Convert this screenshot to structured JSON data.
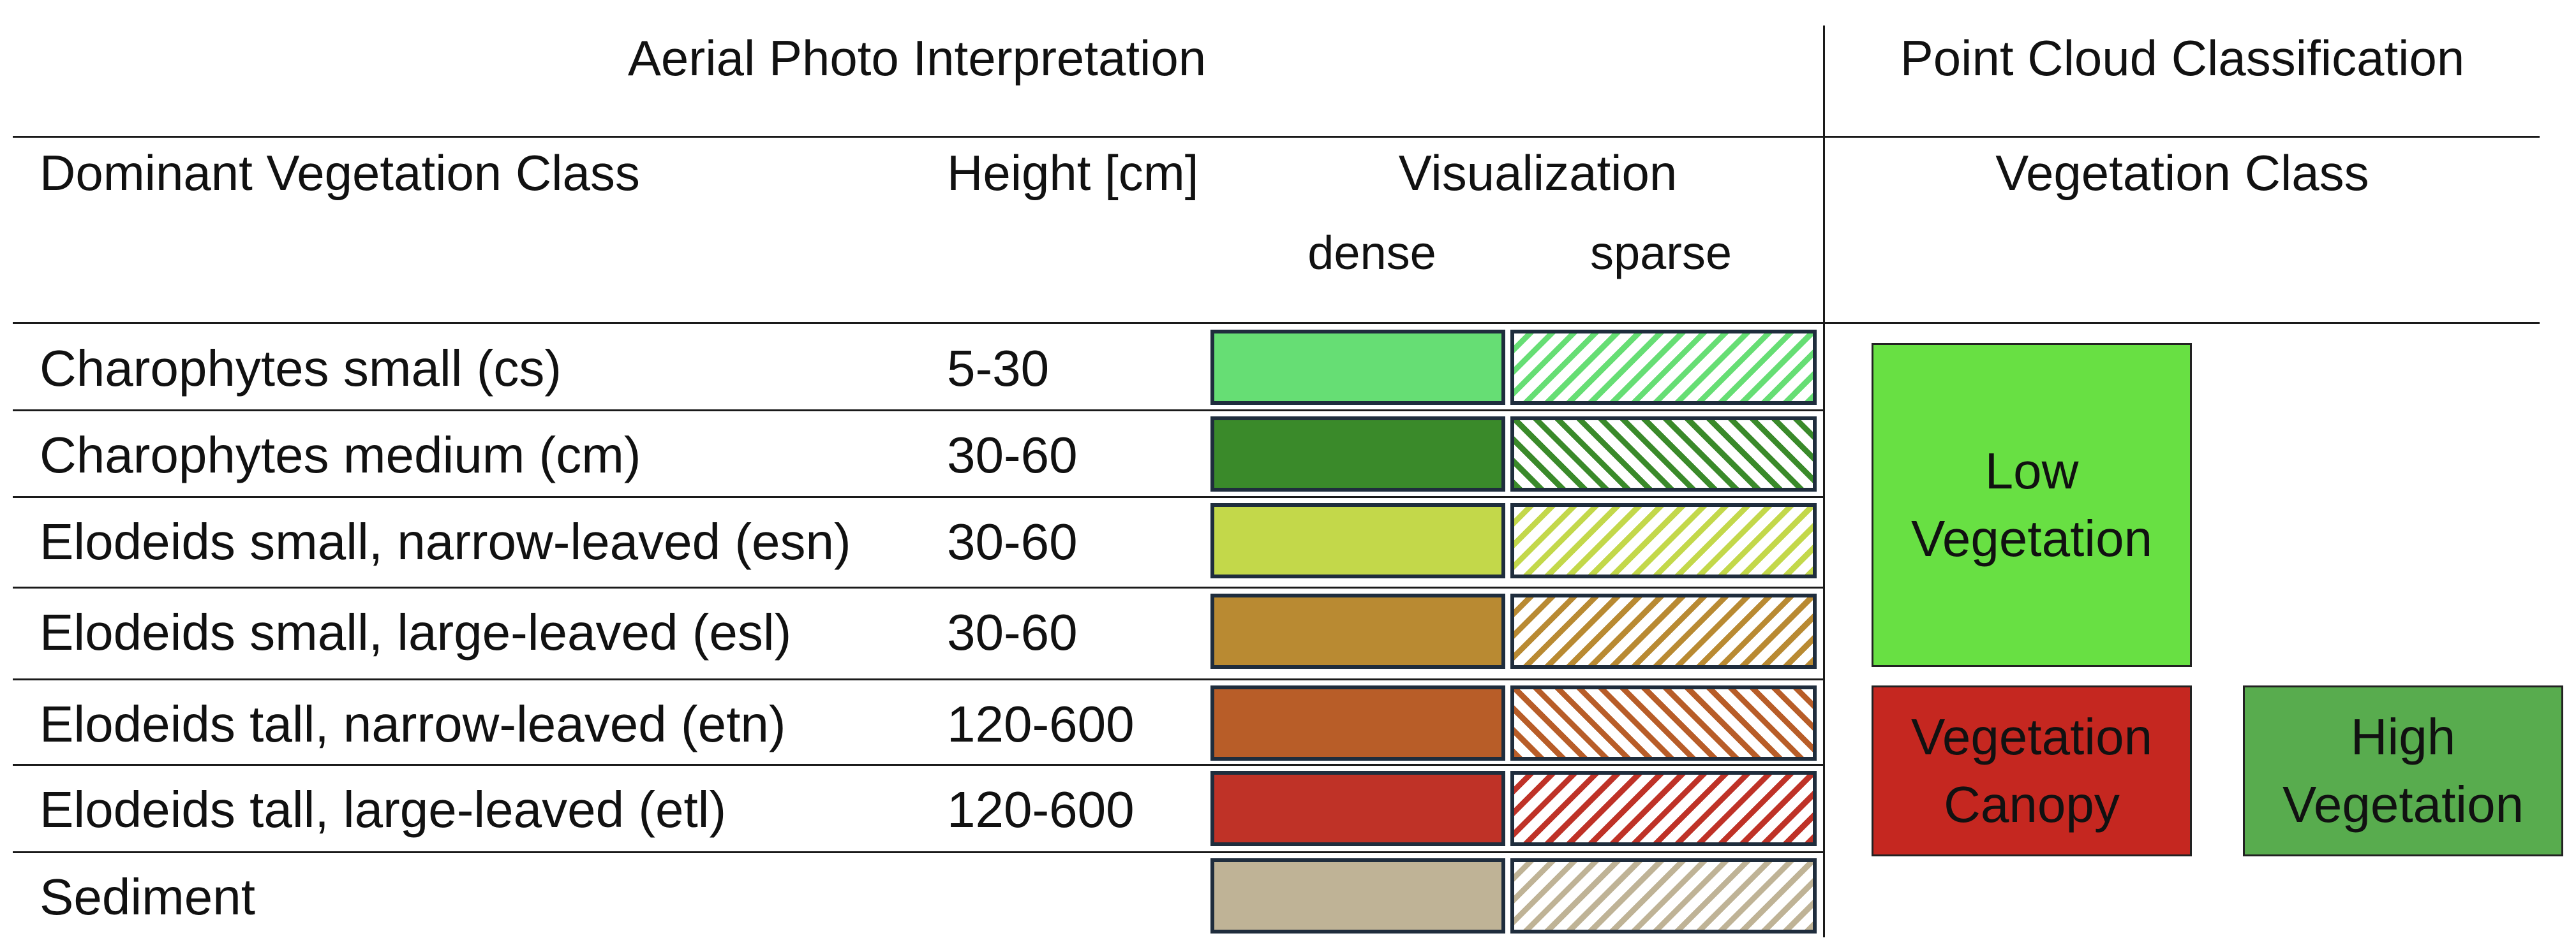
{
  "header": {
    "left_title": "Aerial Photo Interpretation",
    "right_title": "Point Cloud Classification"
  },
  "columns": {
    "class": "Dominant Vegetation Class",
    "height": "Height [cm]",
    "visualization": "Visualization",
    "dense": "dense",
    "sparse": "sparse",
    "vegetation_class": "Vegetation Class"
  },
  "rows": [
    {
      "name": "Charophytes small (cs)",
      "height": "5-30",
      "color": "#66de74"
    },
    {
      "name": "Charophytes medium (cm)",
      "height": "30-60",
      "color": "#3a8a2a"
    },
    {
      "name": "Elodeids small, narrow-leaved (esn)",
      "height": "30-60",
      "color": "#c3d84a"
    },
    {
      "name": "Elodeids small, large-leaved (esl)",
      "height": "30-60",
      "color": "#b98a32"
    },
    {
      "name": "Elodeids tall, narrow-leaved (etn)",
      "height": "120-600",
      "color": "#b85d28"
    },
    {
      "name": "Elodeids tall, large-leaved (etl)",
      "height": "120-600",
      "color": "#bf3227"
    },
    {
      "name": "Sediment",
      "height": "",
      "color": "#bfb396"
    }
  ],
  "classes": {
    "low": {
      "line1": "Low",
      "line2": "Vegetation",
      "color": "#68e043"
    },
    "canopy": {
      "line1": "Vegetation",
      "line2": "Canopy",
      "color": "#c52720"
    },
    "high": {
      "line1": "High",
      "line2": "Vegetation",
      "color": "#58ac4e"
    }
  }
}
